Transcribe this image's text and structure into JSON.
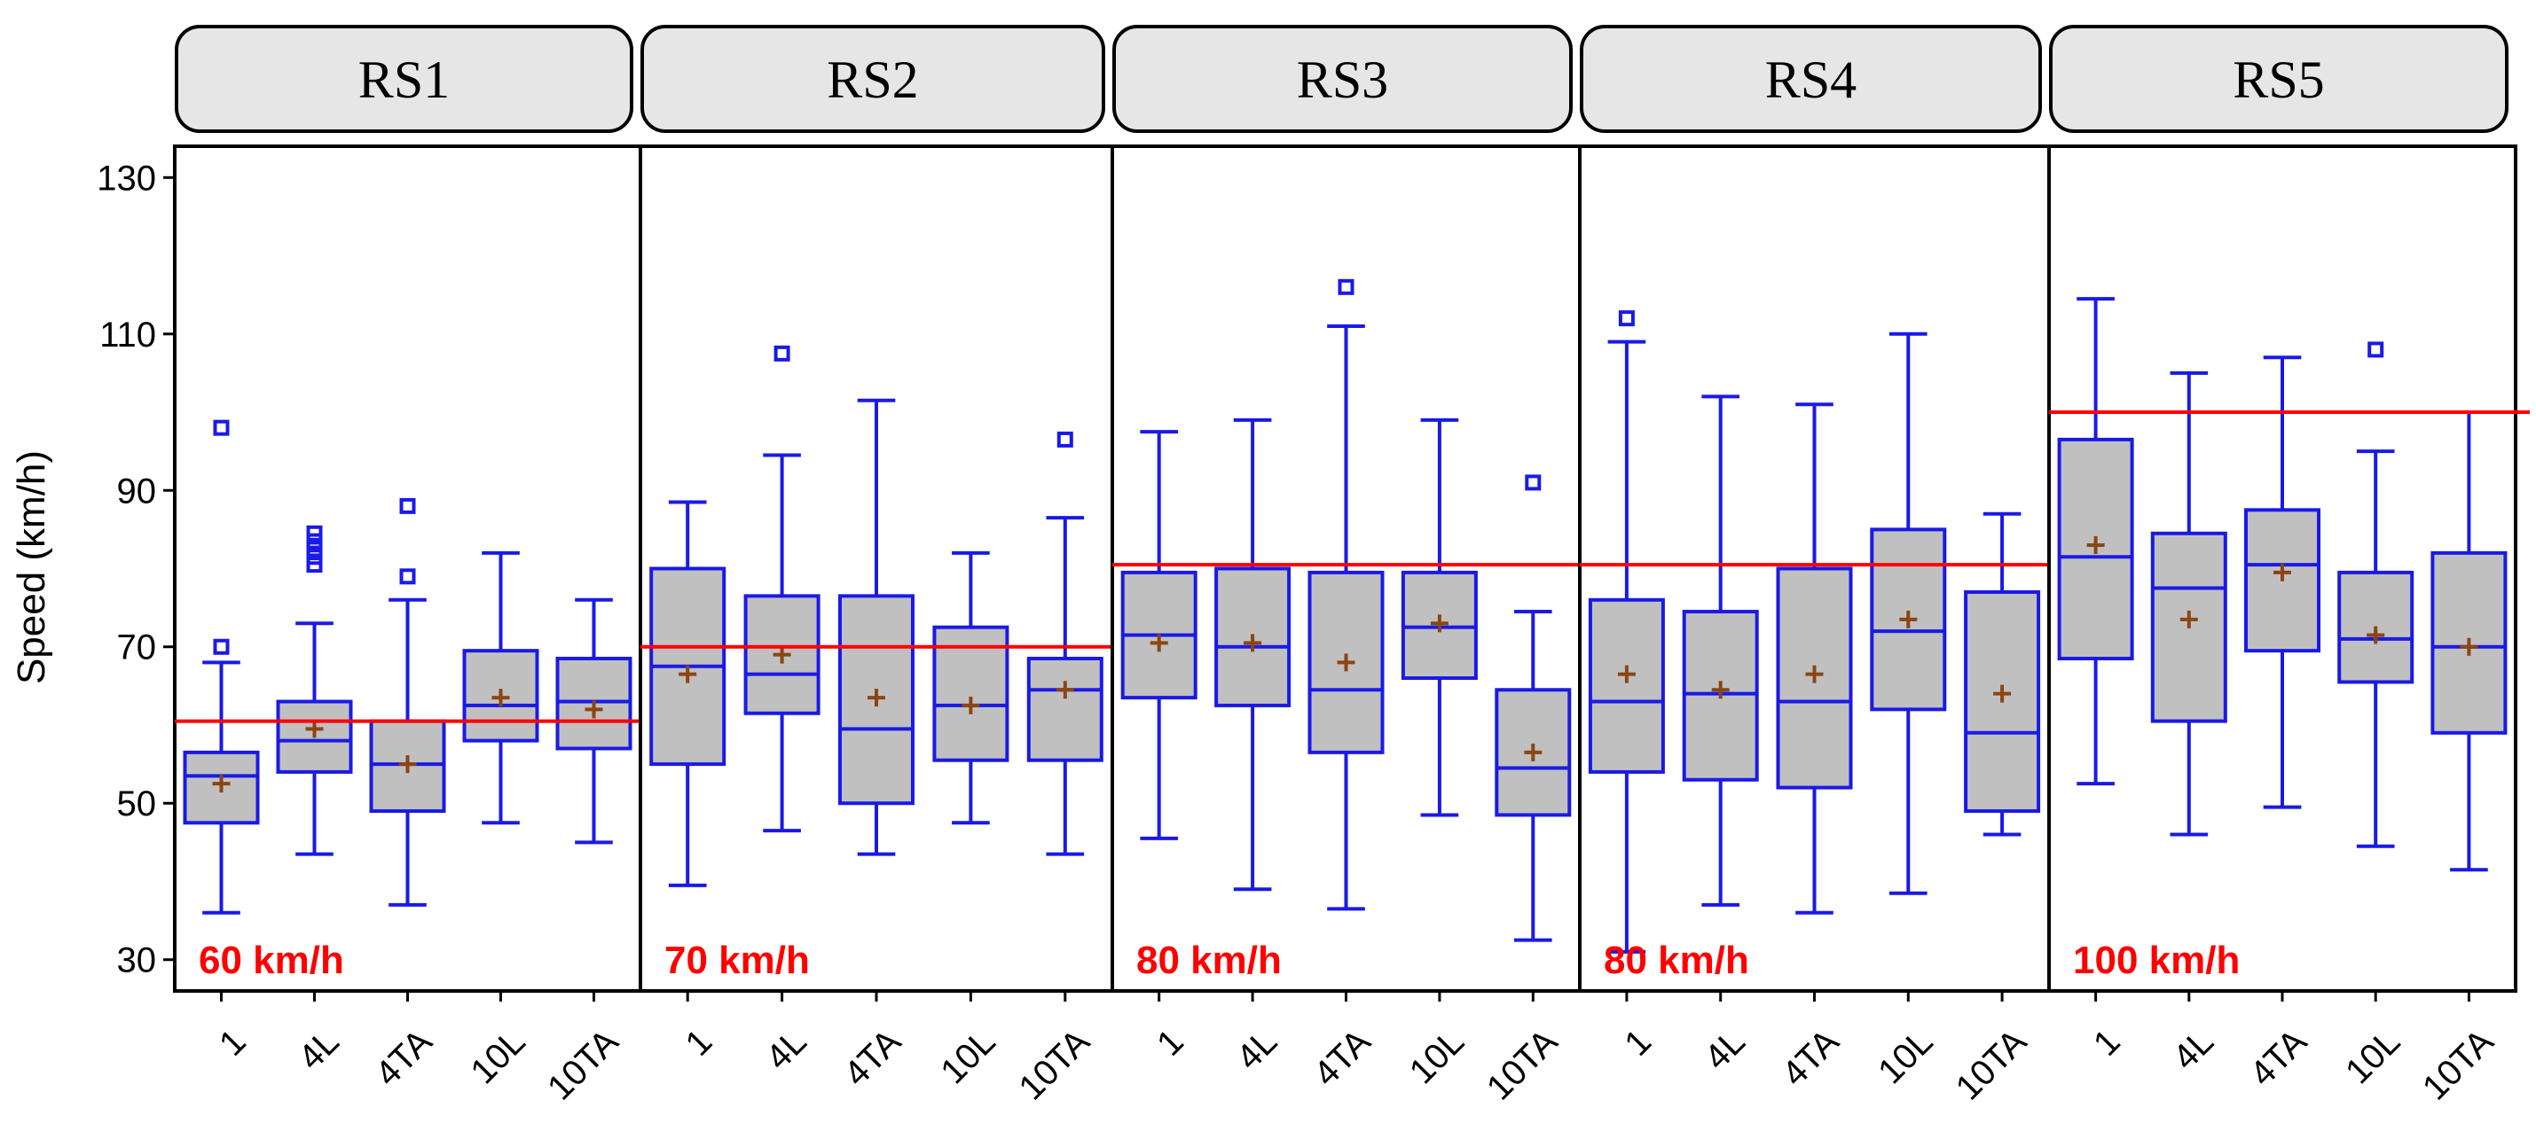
{
  "chart_data": {
    "type": "boxplot",
    "ylabel": "Speed (km/h)",
    "ylim": [
      26,
      134
    ],
    "yticks": [
      30,
      50,
      70,
      90,
      110,
      130
    ],
    "categories": [
      "1",
      "4L",
      "4TA",
      "10L",
      "10TA"
    ],
    "colors": {
      "box_fill": "#c0c0c0",
      "box_edge": "#1a1ae6",
      "outlier": "#1a1ae6",
      "mean_marker": "#8b4513",
      "limit_line": "#ff0000",
      "limit_text": "#ff0000",
      "strip_fill": "#e6e6e6"
    },
    "panels": [
      {
        "name": "RS1",
        "limit": 60.5,
        "limit_label": "60 km/h",
        "boxes": [
          {
            "category": "1",
            "whisker_low": 36,
            "q1": 47.5,
            "median": 53.5,
            "q3": 56.5,
            "whisker_high": 68,
            "mean": 52.5,
            "outliers": [
              70,
              98
            ]
          },
          {
            "category": "4L",
            "whisker_low": 43.5,
            "q1": 54,
            "median": 58,
            "q3": 63,
            "whisker_high": 73,
            "mean": 59.5,
            "outliers": [
              80.5,
              81.5,
              82.5,
              83.5,
              84.5
            ]
          },
          {
            "category": "4TA",
            "whisker_low": 37,
            "q1": 49,
            "median": 55,
            "q3": 60.5,
            "whisker_high": 76,
            "mean": 55,
            "outliers": [
              79,
              88
            ]
          },
          {
            "category": "10L",
            "whisker_low": 47.5,
            "q1": 58,
            "median": 62.5,
            "q3": 69.5,
            "whisker_high": 82,
            "mean": 63.5,
            "outliers": []
          },
          {
            "category": "10TA",
            "whisker_low": 45,
            "q1": 57,
            "median": 63,
            "q3": 68.5,
            "whisker_high": 76,
            "mean": 62,
            "outliers": []
          }
        ]
      },
      {
        "name": "RS2",
        "limit": 70,
        "limit_label": "70 km/h",
        "boxes": [
          {
            "category": "1",
            "whisker_low": 39.5,
            "q1": 55,
            "median": 67.5,
            "q3": 80,
            "whisker_high": 88.5,
            "mean": 66.5,
            "outliers": []
          },
          {
            "category": "4L",
            "whisker_low": 46.5,
            "q1": 61.5,
            "median": 66.5,
            "q3": 76.5,
            "whisker_high": 94.5,
            "mean": 69,
            "outliers": [
              107.5
            ]
          },
          {
            "category": "4TA",
            "whisker_low": 43.5,
            "q1": 50,
            "median": 59.5,
            "q3": 76.5,
            "whisker_high": 101.5,
            "mean": 63.5,
            "outliers": []
          },
          {
            "category": "10L",
            "whisker_low": 47.5,
            "q1": 55.5,
            "median": 62.5,
            "q3": 72.5,
            "whisker_high": 82,
            "mean": 62.5,
            "outliers": []
          },
          {
            "category": "10TA",
            "whisker_low": 43.5,
            "q1": 55.5,
            "median": 64.5,
            "q3": 68.5,
            "whisker_high": 86.5,
            "mean": 64.5,
            "outliers": [
              96.5
            ]
          }
        ]
      },
      {
        "name": "RS3",
        "limit": 80.5,
        "limit_label": "80 km/h",
        "boxes": [
          {
            "category": "1",
            "whisker_low": 45.5,
            "q1": 63.5,
            "median": 71.5,
            "q3": 79.5,
            "whisker_high": 97.5,
            "mean": 70.5,
            "outliers": []
          },
          {
            "category": "4L",
            "whisker_low": 39,
            "q1": 62.5,
            "median": 70,
            "q3": 80,
            "whisker_high": 99,
            "mean": 70.5,
            "outliers": []
          },
          {
            "category": "4TA",
            "whisker_low": 36.5,
            "q1": 56.5,
            "median": 64.5,
            "q3": 79.5,
            "whisker_high": 111,
            "mean": 68,
            "outliers": [
              116
            ]
          },
          {
            "category": "10L",
            "whisker_low": 48.5,
            "q1": 66,
            "median": 72.5,
            "q3": 79.5,
            "whisker_high": 99,
            "mean": 73,
            "outliers": []
          },
          {
            "category": "10TA",
            "whisker_low": 32.5,
            "q1": 48.5,
            "median": 54.5,
            "q3": 64.5,
            "whisker_high": 74.5,
            "mean": 56.5,
            "outliers": [
              91
            ]
          }
        ]
      },
      {
        "name": "RS4",
        "limit": 80.5,
        "limit_label": "80 km/h",
        "boxes": [
          {
            "category": "1",
            "whisker_low": 31,
            "q1": 54,
            "median": 63,
            "q3": 76,
            "whisker_high": 109,
            "mean": 66.5,
            "outliers": [
              112
            ]
          },
          {
            "category": "4L",
            "whisker_low": 37,
            "q1": 53,
            "median": 64,
            "q3": 74.5,
            "whisker_high": 102,
            "mean": 64.5,
            "outliers": []
          },
          {
            "category": "4TA",
            "whisker_low": 36,
            "q1": 52,
            "median": 63,
            "q3": 80,
            "whisker_high": 101,
            "mean": 66.5,
            "outliers": []
          },
          {
            "category": "10L",
            "whisker_low": 38.5,
            "q1": 62,
            "median": 72,
            "q3": 85,
            "whisker_high": 110,
            "mean": 73.5,
            "outliers": []
          },
          {
            "category": "10TA",
            "whisker_low": 46,
            "q1": 49,
            "median": 59,
            "q3": 77,
            "whisker_high": 87,
            "mean": 64,
            "outliers": []
          }
        ]
      },
      {
        "name": "RS5",
        "limit": 100,
        "limit_label": "100 km/h",
        "boxes": [
          {
            "category": "1",
            "whisker_low": 52.5,
            "q1": 68.5,
            "median": 81.5,
            "q3": 96.5,
            "whisker_high": 114.5,
            "mean": 83,
            "outliers": []
          },
          {
            "category": "4L",
            "whisker_low": 46,
            "q1": 60.5,
            "median": 77.5,
            "q3": 84.5,
            "whisker_high": 105,
            "mean": 73.5,
            "outliers": []
          },
          {
            "category": "4TA",
            "whisker_low": 49.5,
            "q1": 69.5,
            "median": 80.5,
            "q3": 87.5,
            "whisker_high": 107,
            "mean": 79.5,
            "outliers": []
          },
          {
            "category": "10L",
            "whisker_low": 44.5,
            "q1": 65.5,
            "median": 71,
            "q3": 79.5,
            "whisker_high": 95,
            "mean": 71.5,
            "outliers": [
              108
            ]
          },
          {
            "category": "10TA",
            "whisker_low": 41.5,
            "q1": 59,
            "median": 70,
            "q3": 82,
            "whisker_high": 100,
            "mean": 70,
            "outliers": []
          }
        ]
      }
    ]
  }
}
